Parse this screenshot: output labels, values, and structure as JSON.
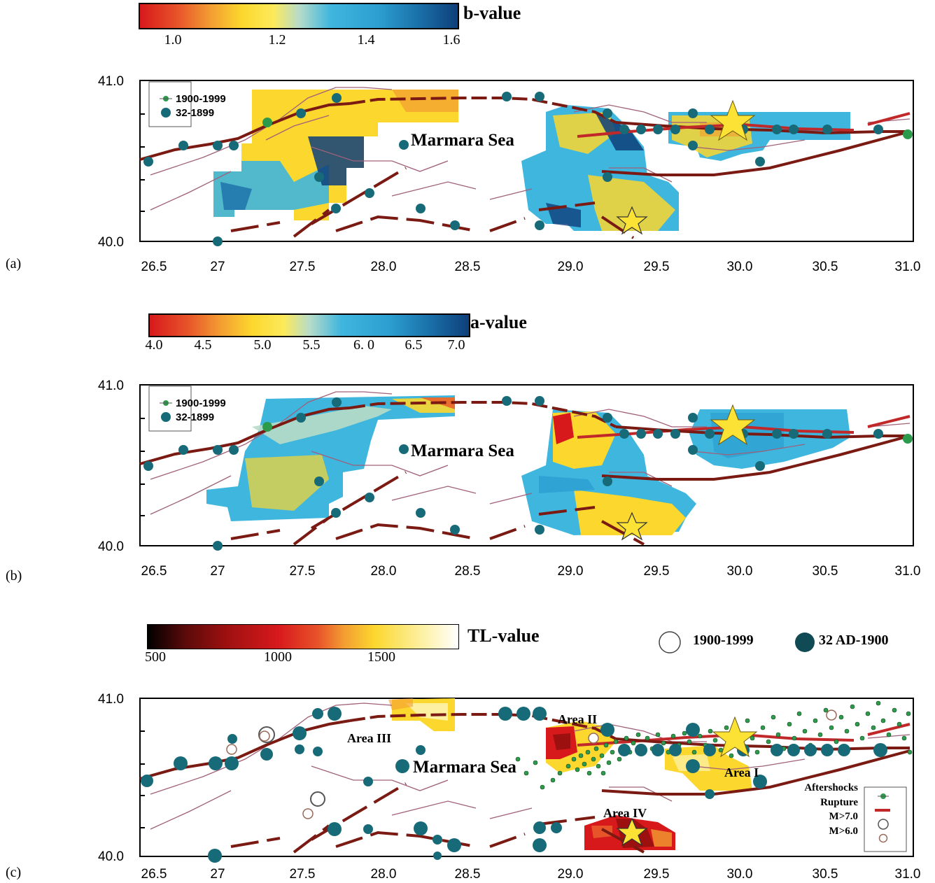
{
  "panels": [
    {
      "letter": "(a)",
      "colorbar": {
        "title": "b-value",
        "ticks": [
          "1.0",
          "1.2",
          "1.4",
          "1.6"
        ],
        "colors": [
          "#d7191c",
          "#e8542a",
          "#f39c32",
          "#fcd72e",
          "#fcea5a",
          "#b8dcc8",
          "#3fb6de",
          "#2c9fd0",
          "#1a6fa8",
          "#0e3f7a"
        ]
      },
      "legend": [
        "1900-1999",
        "32-1899"
      ],
      "sea_label": "Marmara Sea",
      "x_ticks": [
        "26.5",
        "27",
        "27.5",
        "28.0",
        "28.5",
        "29.0",
        "29.5",
        "30.0",
        "30.5",
        "31.0"
      ],
      "y_ticks": [
        "41.0",
        "40.0"
      ]
    },
    {
      "letter": "(b)",
      "colorbar": {
        "title": "a-value",
        "ticks": [
          "4.0",
          "4.5",
          "5.0",
          "5.5",
          "6. 0",
          "6.5",
          "7.0"
        ],
        "colors": [
          "#d7191c",
          "#e8542a",
          "#f39c32",
          "#fcd72e",
          "#fcea5a",
          "#b8dcc8",
          "#3fb6de",
          "#2c9fd0",
          "#1a6fa8",
          "#0e3f7a"
        ]
      },
      "legend": [
        "1900-1999",
        "32-1899"
      ],
      "sea_label": "Marmara Sea",
      "x_ticks": [
        "26.5",
        "27",
        "27.5",
        "28.0",
        "28.5",
        "29.0",
        "29.5",
        "30.0",
        "30.5",
        "31.0"
      ],
      "y_ticks": [
        "41.0",
        "40.0"
      ]
    },
    {
      "letter": "(c)",
      "colorbar": {
        "title": "TL-value",
        "ticks": [
          "500",
          "1000",
          "1500"
        ],
        "colors": [
          "#000000",
          "#5a0a0a",
          "#9c1010",
          "#d7191c",
          "#e8542a",
          "#f39c32",
          "#fcd72e",
          "#fdf0a0",
          "#ffffff"
        ]
      },
      "top_legend": [
        "1900-1999",
        "32 AD-1900"
      ],
      "legend": [
        "Aftershocks",
        "Rupture",
        "M>7.0",
        "M>6.0"
      ],
      "sea_label": "Marmara Sea",
      "area_labels": [
        "Area II",
        "Area III",
        "Area I",
        "Area IV"
      ],
      "x_ticks": [
        "26.5",
        "27",
        "27.5",
        "28.0",
        "28.5",
        "29.0",
        "29.5",
        "30.0",
        "30.5",
        "31.0"
      ],
      "y_ticks": [
        "41.0",
        "40.0"
      ]
    }
  ],
  "colors": {
    "fault": "#7a1a12",
    "rupture": "#c0282a",
    "coast": "#a0607a",
    "quake_old": "#176a78",
    "quake_new": "#2b9a4a",
    "aftershock": "#2f9a4c",
    "star": "#fbe234"
  }
}
